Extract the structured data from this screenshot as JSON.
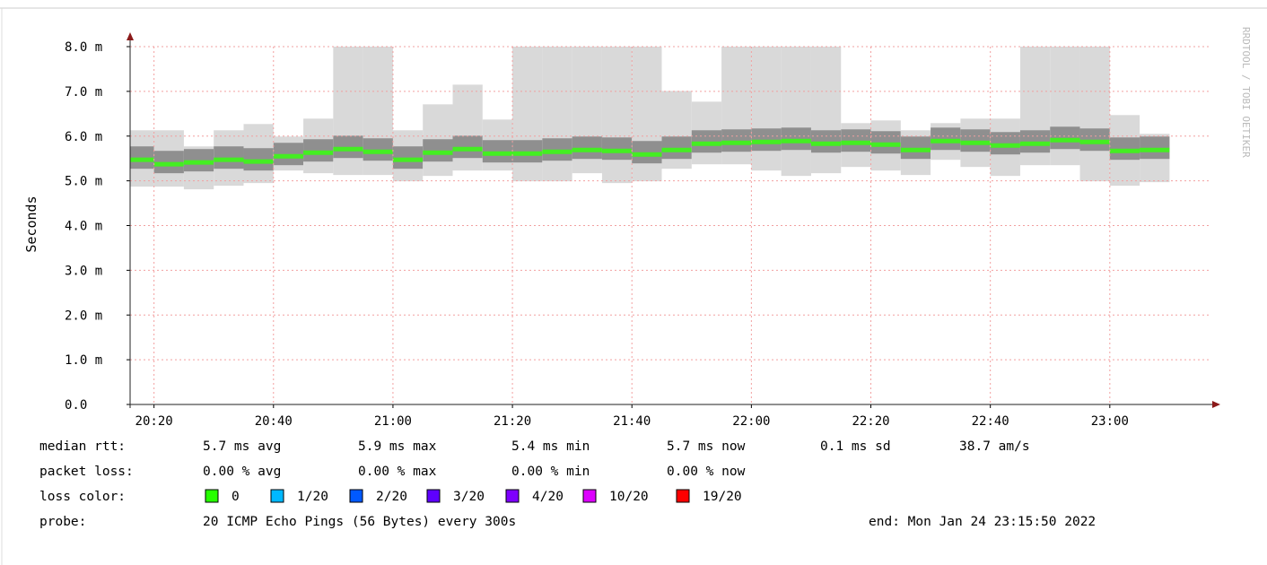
{
  "chart_data": {
    "type": "smoke",
    "y_label": "Seconds",
    "side_text": "RRDTOOL / TOBI OETIKER",
    "x": [
      "20:20",
      "20:25",
      "20:30",
      "20:35",
      "20:40",
      "20:45",
      "20:50",
      "20:55",
      "21:00",
      "21:05",
      "21:10",
      "21:15",
      "21:20",
      "21:25",
      "21:30",
      "21:35",
      "21:40",
      "21:45",
      "21:50",
      "21:55",
      "22:00",
      "22:05",
      "22:10",
      "22:15",
      "22:20",
      "22:25",
      "22:30",
      "22:35",
      "22:40",
      "22:45",
      "22:50",
      "22:55",
      "23:00",
      "23:05",
      "23:10"
    ],
    "xlim": [
      "20:16",
      "23:17"
    ],
    "xticks": [
      "20:20",
      "20:40",
      "21:00",
      "21:20",
      "21:40",
      "22:00",
      "22:20",
      "22:40",
      "23:00"
    ],
    "ylim": [
      0,
      8
    ],
    "yticks": [
      {
        "value": 0,
        "label": "0.0"
      },
      {
        "value": 1,
        "label": "1.0 m"
      },
      {
        "value": 2,
        "label": "2.0 m"
      },
      {
        "value": 3,
        "label": "3.0 m"
      },
      {
        "value": 4,
        "label": "4.0 m"
      },
      {
        "value": 5,
        "label": "5.0 m"
      },
      {
        "value": 6,
        "label": "6.0 m"
      },
      {
        "value": 7,
        "label": "7.0 m"
      },
      {
        "value": 8,
        "label": "8.0 m"
      }
    ],
    "grid": true,
    "median": [
      5.47,
      5.37,
      5.41,
      5.47,
      5.43,
      5.55,
      5.63,
      5.71,
      5.65,
      5.47,
      5.63,
      5.71,
      5.61,
      5.61,
      5.65,
      5.69,
      5.67,
      5.59,
      5.69,
      5.83,
      5.85,
      5.87,
      5.89,
      5.83,
      5.85,
      5.81,
      5.69,
      5.89,
      5.85,
      5.79,
      5.83,
      5.91,
      5.87,
      5.67,
      5.69
    ],
    "median_color": "#44ee22",
    "smoke_min": [
      4.87,
      4.87,
      4.81,
      4.89,
      4.95,
      5.23,
      5.17,
      5.13,
      5.13,
      4.99,
      5.11,
      5.23,
      5.23,
      4.99,
      4.99,
      5.17,
      4.95,
      4.99,
      5.27,
      5.37,
      5.37,
      5.23,
      5.11,
      5.17,
      5.31,
      5.23,
      5.13,
      5.47,
      5.31,
      5.11,
      5.35,
      5.35,
      4.99,
      4.89,
      4.97
    ],
    "smoke_max": [
      6.13,
      6.13,
      5.77,
      6.13,
      6.27,
      5.99,
      6.39,
      8.0,
      8.0,
      6.13,
      6.71,
      7.15,
      6.37,
      8.0,
      8.0,
      8.0,
      8.0,
      8.0,
      7.01,
      6.77,
      8.0,
      8.0,
      8.0,
      8.0,
      6.29,
      6.35,
      6.13,
      6.29,
      6.39,
      6.39,
      8.0,
      8.0,
      8.0,
      6.47,
      6.05
    ],
    "smoke_lo": [
      5.27,
      5.17,
      5.21,
      5.27,
      5.23,
      5.35,
      5.43,
      5.51,
      5.45,
      5.27,
      5.43,
      5.51,
      5.41,
      5.41,
      5.45,
      5.49,
      5.47,
      5.39,
      5.49,
      5.63,
      5.65,
      5.67,
      5.69,
      5.63,
      5.65,
      5.61,
      5.49,
      5.69,
      5.65,
      5.59,
      5.63,
      5.71,
      5.67,
      5.47,
      5.49
    ],
    "smoke_hi": [
      5.77,
      5.67,
      5.71,
      5.77,
      5.73,
      5.85,
      5.93,
      6.01,
      5.95,
      5.77,
      5.93,
      6.01,
      5.91,
      5.91,
      5.95,
      5.99,
      5.97,
      5.89,
      5.99,
      6.13,
      6.15,
      6.17,
      6.19,
      6.13,
      6.15,
      6.11,
      5.99,
      6.19,
      6.15,
      6.09,
      6.13,
      6.21,
      6.17,
      5.97,
      5.99
    ],
    "smoke_outer_color": "#d9d9d9",
    "smoke_inner_color": "#8f8f8f",
    "stats": [
      {
        "label": "median rtt:",
        "items": [
          "5.7 ms avg",
          "5.9 ms max",
          "5.4 ms min",
          "5.7 ms now",
          "0.1 ms sd",
          "38.7   am/s"
        ]
      },
      {
        "label": "packet loss:",
        "items": [
          "0.00 % avg",
          "0.00 % max",
          "0.00 % min",
          "0.00 % now"
        ]
      }
    ],
    "loss_label": "loss color:",
    "loss_colors": [
      {
        "label": "0",
        "color": "#26ff00"
      },
      {
        "label": "1/20",
        "color": "#00b8ff"
      },
      {
        "label": "2/20",
        "color": "#0059ff"
      },
      {
        "label": "3/20",
        "color": "#5e00ff"
      },
      {
        "label": "4/20",
        "color": "#7e00ff"
      },
      {
        "label": "10/20",
        "color": "#dd00ff"
      },
      {
        "label": "19/20",
        "color": "#ff0000"
      }
    ],
    "probe_label": "probe:",
    "probe": "20 ICMP Echo Pings (56 Bytes) every 300s",
    "end": "end: Mon Jan 24 23:15:50 2022"
  }
}
